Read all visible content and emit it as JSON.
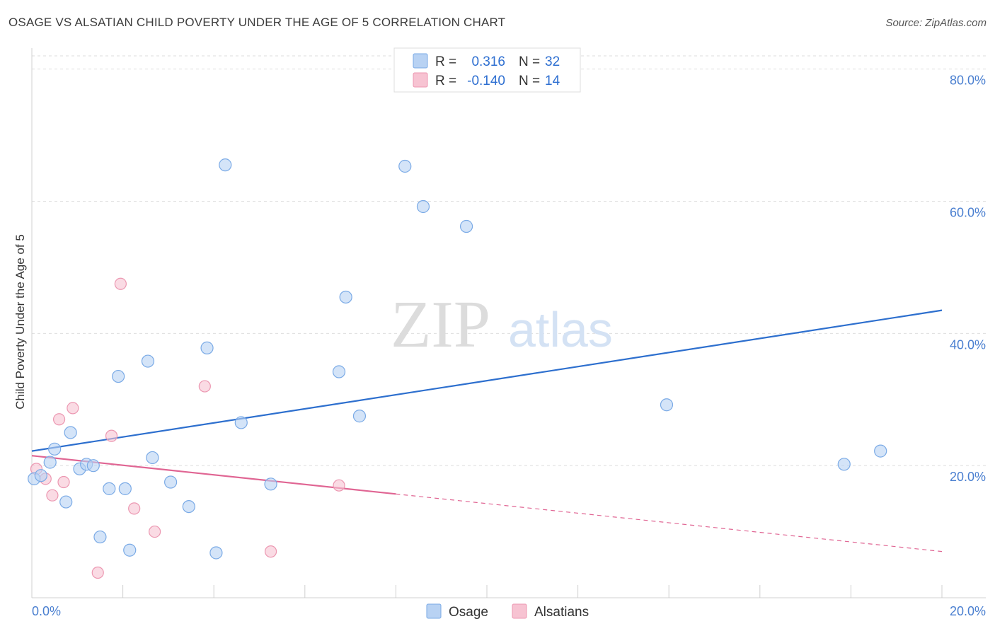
{
  "title": "OSAGE VS ALSATIAN CHILD POVERTY UNDER THE AGE OF 5 CORRELATION CHART",
  "source": "Source: ZipAtlas.com",
  "watermark": {
    "zip": "ZIP",
    "atlas": "atlas"
  },
  "colors": {
    "osage_fill": "#b8d2f3",
    "osage_stroke": "#7aaae6",
    "osage_line": "#2d6fce",
    "alsatian_fill": "#f7c3d2",
    "alsatian_stroke": "#ec97b1",
    "alsatian_line": "#e06593",
    "grid": "#dedede",
    "axis_text": "#4a7fd0"
  },
  "legend": {
    "rows": [
      {
        "r_label": "R =",
        "r_value": "0.316",
        "n_label": "N =",
        "n_value": "32"
      },
      {
        "r_label": "R =",
        "r_value": "-0.140",
        "n_label": "N =",
        "n_value": "14"
      }
    ]
  },
  "bottom_legend": [
    "Osage",
    "Alsatians"
  ],
  "chart_data": {
    "type": "scatter",
    "title": "OSAGE VS ALSATIAN CHILD POVERTY UNDER THE AGE OF 5 CORRELATION CHART",
    "ylabel": "Child Poverty Under the Age of 5",
    "xlabel": "",
    "xlim": [
      0,
      20
    ],
    "ylim": [
      0,
      82
    ],
    "x_tick_labels": [
      "0.0%",
      "20.0%"
    ],
    "y_ticks": [
      20,
      40,
      60,
      80
    ],
    "y_tick_labels": [
      "20.0%",
      "40.0%",
      "60.0%",
      "80.0%"
    ],
    "series": [
      {
        "name": "Osage",
        "points": [
          [
            0.05,
            18.0
          ],
          [
            0.2,
            18.5
          ],
          [
            0.4,
            20.5
          ],
          [
            0.5,
            22.5
          ],
          [
            0.75,
            14.5
          ],
          [
            0.85,
            25.0
          ],
          [
            1.05,
            19.5
          ],
          [
            1.2,
            20.2
          ],
          [
            1.35,
            20.0
          ],
          [
            1.5,
            9.2
          ],
          [
            1.7,
            16.5
          ],
          [
            1.9,
            33.5
          ],
          [
            2.05,
            16.5
          ],
          [
            2.15,
            7.2
          ],
          [
            2.55,
            35.8
          ],
          [
            2.65,
            21.2
          ],
          [
            3.05,
            17.5
          ],
          [
            3.45,
            13.8
          ],
          [
            3.85,
            37.8
          ],
          [
            4.05,
            6.8
          ],
          [
            4.25,
            65.5
          ],
          [
            4.6,
            26.5
          ],
          [
            5.25,
            17.2
          ],
          [
            6.75,
            34.2
          ],
          [
            6.9,
            45.5
          ],
          [
            7.2,
            27.5
          ],
          [
            8.2,
            65.3
          ],
          [
            8.6,
            59.2
          ],
          [
            9.55,
            56.2
          ],
          [
            13.95,
            29.2
          ],
          [
            17.85,
            20.2
          ],
          [
            18.65,
            22.2
          ]
        ],
        "trend": {
          "x": [
            0,
            20
          ],
          "y": [
            22.2,
            43.5
          ]
        }
      },
      {
        "name": "Alsatians",
        "points": [
          [
            0.1,
            19.5
          ],
          [
            0.3,
            18.0
          ],
          [
            0.45,
            15.5
          ],
          [
            0.6,
            27.0
          ],
          [
            0.7,
            17.5
          ],
          [
            0.9,
            28.7
          ],
          [
            1.45,
            3.8
          ],
          [
            1.75,
            24.5
          ],
          [
            1.95,
            47.5
          ],
          [
            2.25,
            13.5
          ],
          [
            2.7,
            10.0
          ],
          [
            3.8,
            32.0
          ],
          [
            5.25,
            7.0
          ],
          [
            6.75,
            17.0
          ]
        ],
        "trend": {
          "x": [
            0,
            8
          ],
          "y": [
            21.5,
            15.7
          ]
        },
        "trend_extension": {
          "x": [
            8,
            20
          ],
          "y": [
            15.7,
            7.0
          ]
        }
      }
    ],
    "legend_position": "top-center",
    "grid": true
  }
}
